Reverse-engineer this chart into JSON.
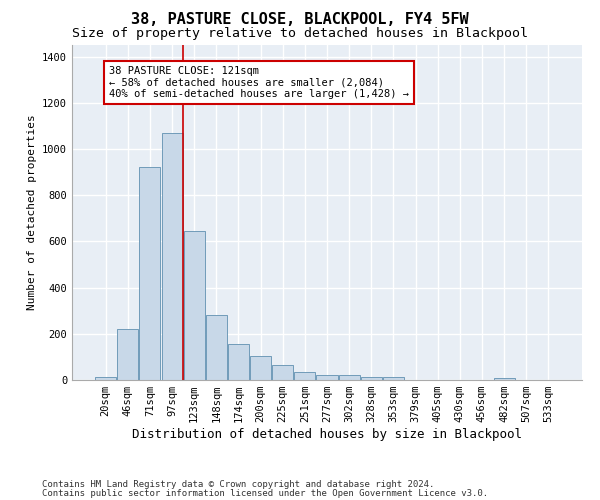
{
  "title1": "38, PASTURE CLOSE, BLACKPOOL, FY4 5FW",
  "title2": "Size of property relative to detached houses in Blackpool",
  "xlabel": "Distribution of detached houses by size in Blackpool",
  "ylabel": "Number of detached properties",
  "bar_labels": [
    "20sqm",
    "46sqm",
    "71sqm",
    "97sqm",
    "123sqm",
    "148sqm",
    "174sqm",
    "200sqm",
    "225sqm",
    "251sqm",
    "277sqm",
    "302sqm",
    "328sqm",
    "353sqm",
    "379sqm",
    "405sqm",
    "430sqm",
    "456sqm",
    "482sqm",
    "507sqm",
    "533sqm"
  ],
  "bar_values": [
    15,
    220,
    920,
    1070,
    645,
    280,
    155,
    105,
    65,
    35,
    20,
    20,
    15,
    12,
    0,
    0,
    0,
    0,
    10,
    0,
    0
  ],
  "bar_color": "#c8d8e8",
  "bar_edge_color": "#6090b0",
  "background_color": "#e8eef5",
  "grid_color": "#ffffff",
  "annotation_text": "38 PASTURE CLOSE: 121sqm\n← 58% of detached houses are smaller (2,084)\n40% of semi-detached houses are larger (1,428) →",
  "annotation_box_color": "#ffffff",
  "annotation_box_edge": "#cc0000",
  "red_line_color": "#cc0000",
  "red_line_x": 3.5,
  "ylim": [
    0,
    1450
  ],
  "yticks": [
    0,
    200,
    400,
    600,
    800,
    1000,
    1200,
    1400
  ],
  "footnote1": "Contains HM Land Registry data © Crown copyright and database right 2024.",
  "footnote2": "Contains public sector information licensed under the Open Government Licence v3.0.",
  "title1_fontsize": 11,
  "title2_fontsize": 9.5,
  "xlabel_fontsize": 9,
  "ylabel_fontsize": 8,
  "tick_fontsize": 7.5,
  "annotation_fontsize": 7.5,
  "footnote_fontsize": 6.5
}
